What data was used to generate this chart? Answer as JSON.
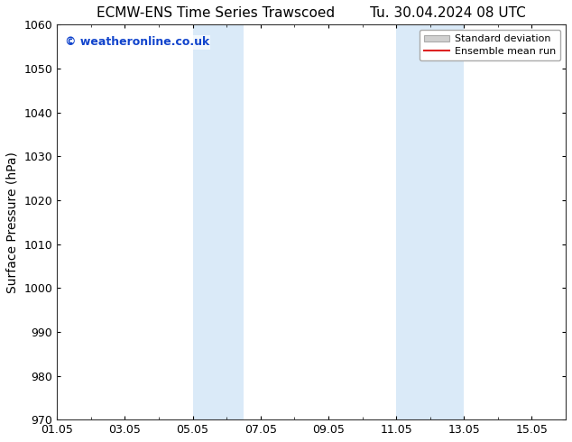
{
  "title_left": "ECMW-ENS Time Series Trawscoed",
  "title_right": "Tu. 30.04.2024 08 UTC",
  "ylabel": "Surface Pressure (hPa)",
  "ylim": [
    970,
    1060
  ],
  "yticks": [
    970,
    980,
    990,
    1000,
    1010,
    1020,
    1030,
    1040,
    1050,
    1060
  ],
  "xtick_labels": [
    "01.05",
    "03.05",
    "05.05",
    "07.05",
    "09.05",
    "11.05",
    "13.05",
    "15.05"
  ],
  "xtick_positions": [
    0,
    2,
    4,
    6,
    8,
    10,
    12,
    14
  ],
  "x_min": 0,
  "x_max": 15,
  "shaded_regions": [
    {
      "x_start": 4,
      "x_end": 5.5,
      "color": "#daeaf8"
    },
    {
      "x_start": 10,
      "x_end": 12,
      "color": "#daeaf8"
    }
  ],
  "watermark_text": "© weatheronline.co.uk",
  "watermark_color": "#1144cc",
  "legend_entries": [
    {
      "label": "Standard deviation",
      "type": "patch",
      "color": "#d0d0d0",
      "edgecolor": "#aaaaaa"
    },
    {
      "label": "Ensemble mean run",
      "type": "line",
      "color": "#dd2222"
    }
  ],
  "bg_color": "#ffffff",
  "plot_bg_color": "#ffffff",
  "title_fontsize": 11,
  "tick_fontsize": 9,
  "ylabel_fontsize": 10,
  "watermark_fontsize": 9,
  "legend_fontsize": 8
}
